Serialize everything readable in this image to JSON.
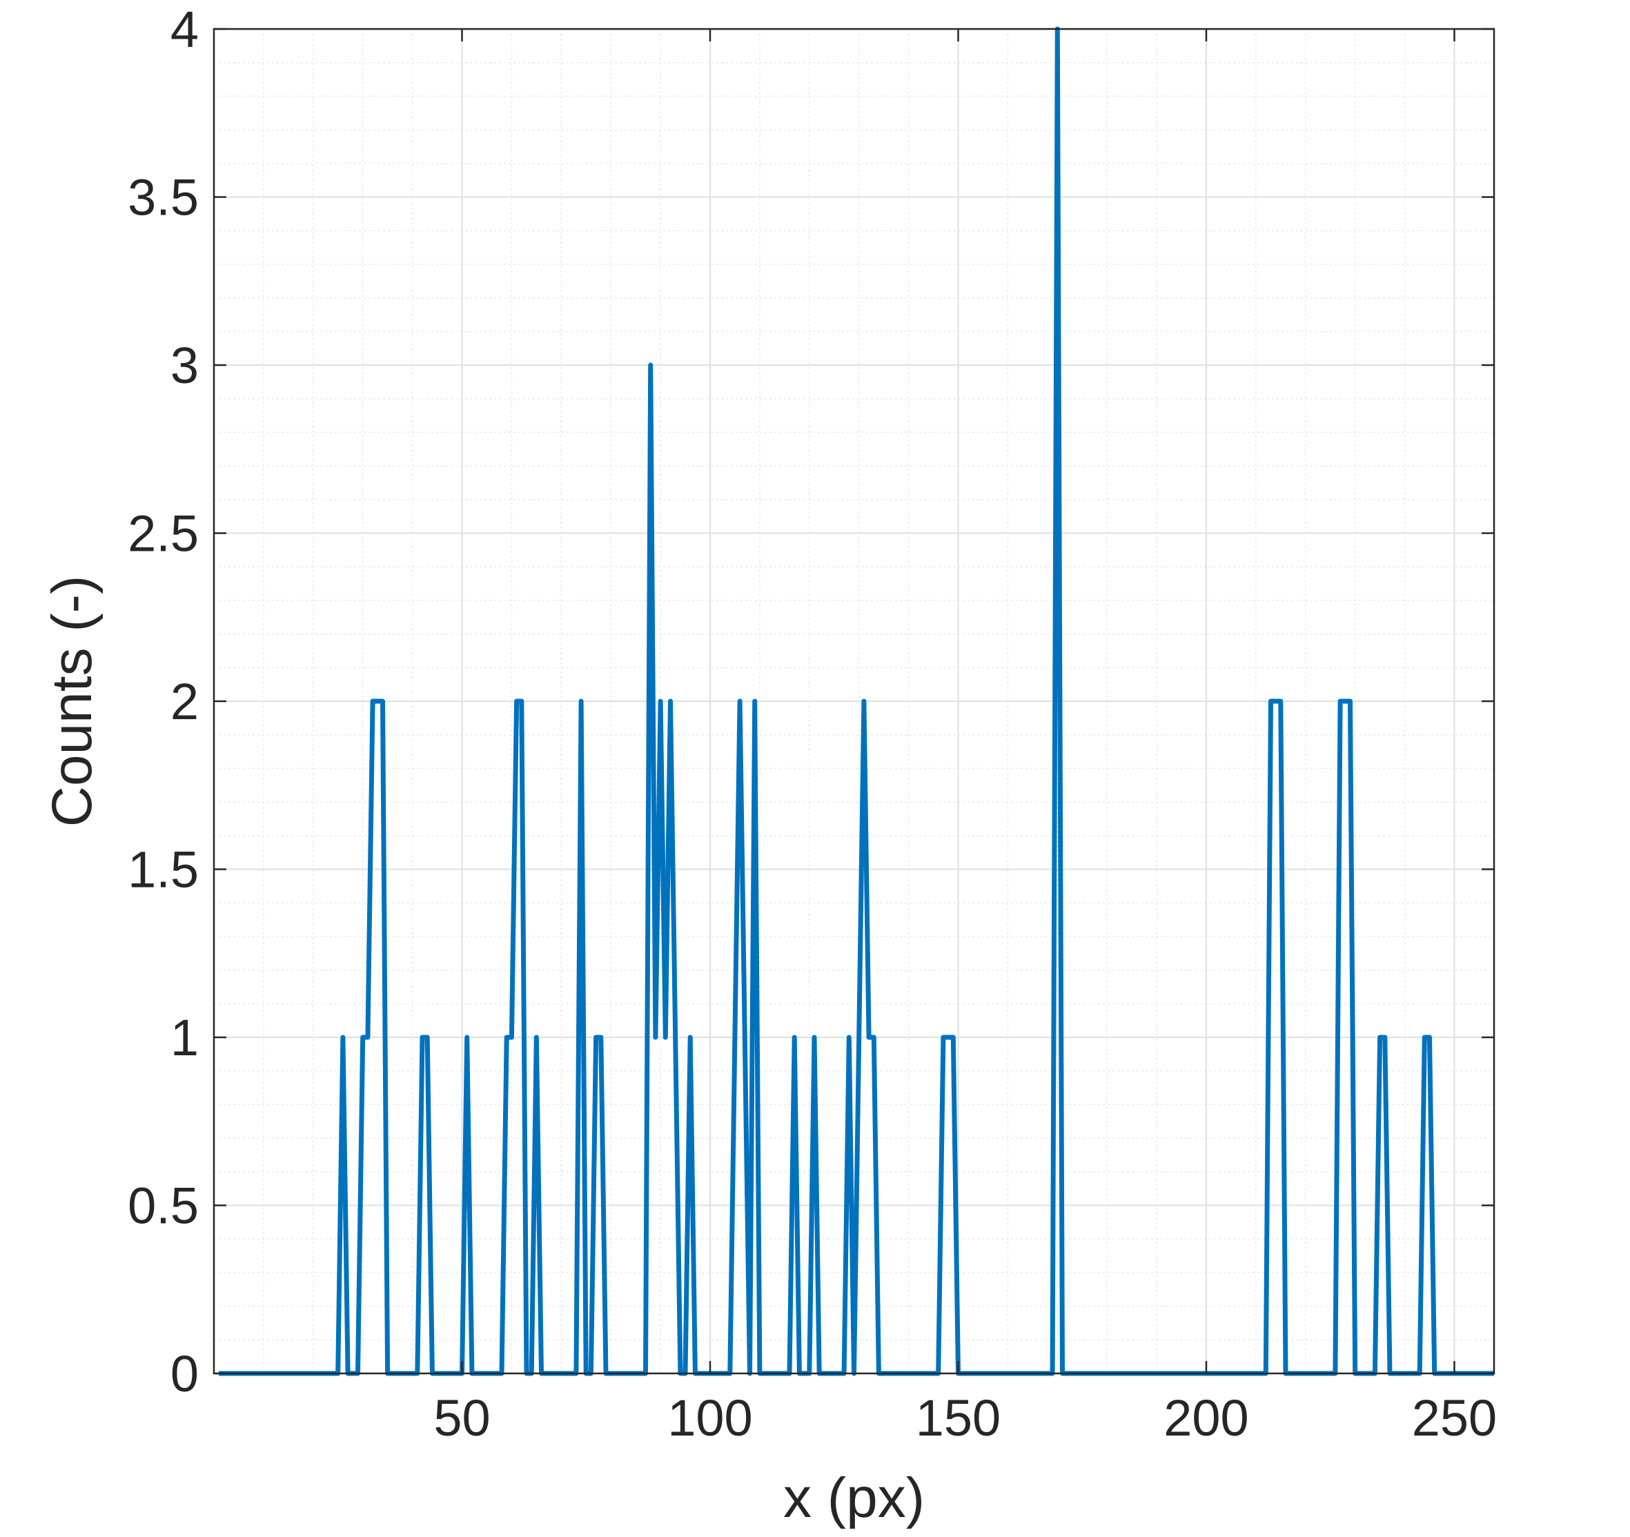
{
  "chart_data": {
    "type": "line",
    "xlabel": "x (px)",
    "ylabel": "Counts (-)",
    "xlim": [
      0,
      258
    ],
    "ylim": [
      0,
      4
    ],
    "xticks": [
      50,
      100,
      150,
      200,
      250
    ],
    "yticks": [
      0,
      0.5,
      1,
      1.5,
      2,
      2.5,
      3,
      3.5,
      4
    ],
    "xtick_labels": [
      "50",
      "100",
      "150",
      "200",
      "250"
    ],
    "ytick_labels": [
      "0",
      "0.5",
      "1",
      "1.5",
      "2",
      "2.5",
      "3",
      "3.5",
      "4"
    ],
    "grid": true,
    "minor_grid": true,
    "line_color": "#0072BD",
    "series": [
      {
        "x": [
          1,
          25,
          26,
          27,
          29,
          30,
          31,
          32,
          33,
          34,
          35,
          41,
          42,
          43,
          44,
          50,
          51,
          52,
          53,
          58,
          59,
          60,
          61,
          62,
          63,
          64,
          65,
          66,
          73,
          74,
          75,
          76,
          77,
          78,
          79,
          87,
          88,
          89,
          90,
          91,
          92,
          93,
          94,
          95,
          96,
          97,
          104,
          105,
          106,
          107,
          108,
          109,
          110,
          116,
          117,
          118,
          119,
          120,
          121,
          122,
          127,
          128,
          129,
          130,
          131,
          132,
          133,
          134,
          146,
          147,
          148,
          149,
          150,
          168,
          169,
          170,
          171,
          172,
          212,
          213,
          214,
          215,
          216,
          226,
          227,
          228,
          229,
          230,
          234,
          235,
          236,
          237,
          243,
          244,
          245,
          246,
          258
        ],
        "y": [
          0,
          0,
          1,
          0,
          0,
          1,
          1,
          2,
          2,
          2,
          0,
          0,
          1,
          1,
          0,
          0,
          1,
          0,
          0,
          0,
          1,
          1,
          2,
          2,
          0,
          0,
          1,
          0,
          0,
          2,
          0,
          0,
          1,
          1,
          0,
          0,
          3,
          1,
          2,
          1,
          2,
          1,
          0,
          0,
          1,
          0,
          0,
          1,
          2,
          1,
          0,
          2,
          0,
          0,
          1,
          0,
          0,
          0,
          1,
          0,
          0,
          1,
          0,
          1,
          2,
          1,
          1,
          0,
          0,
          1,
          1,
          1,
          0,
          0,
          0,
          4,
          0,
          0,
          0,
          2,
          2,
          2,
          0,
          0,
          2,
          2,
          2,
          0,
          0,
          1,
          1,
          0,
          0,
          1,
          1,
          0,
          0
        ]
      }
    ]
  }
}
